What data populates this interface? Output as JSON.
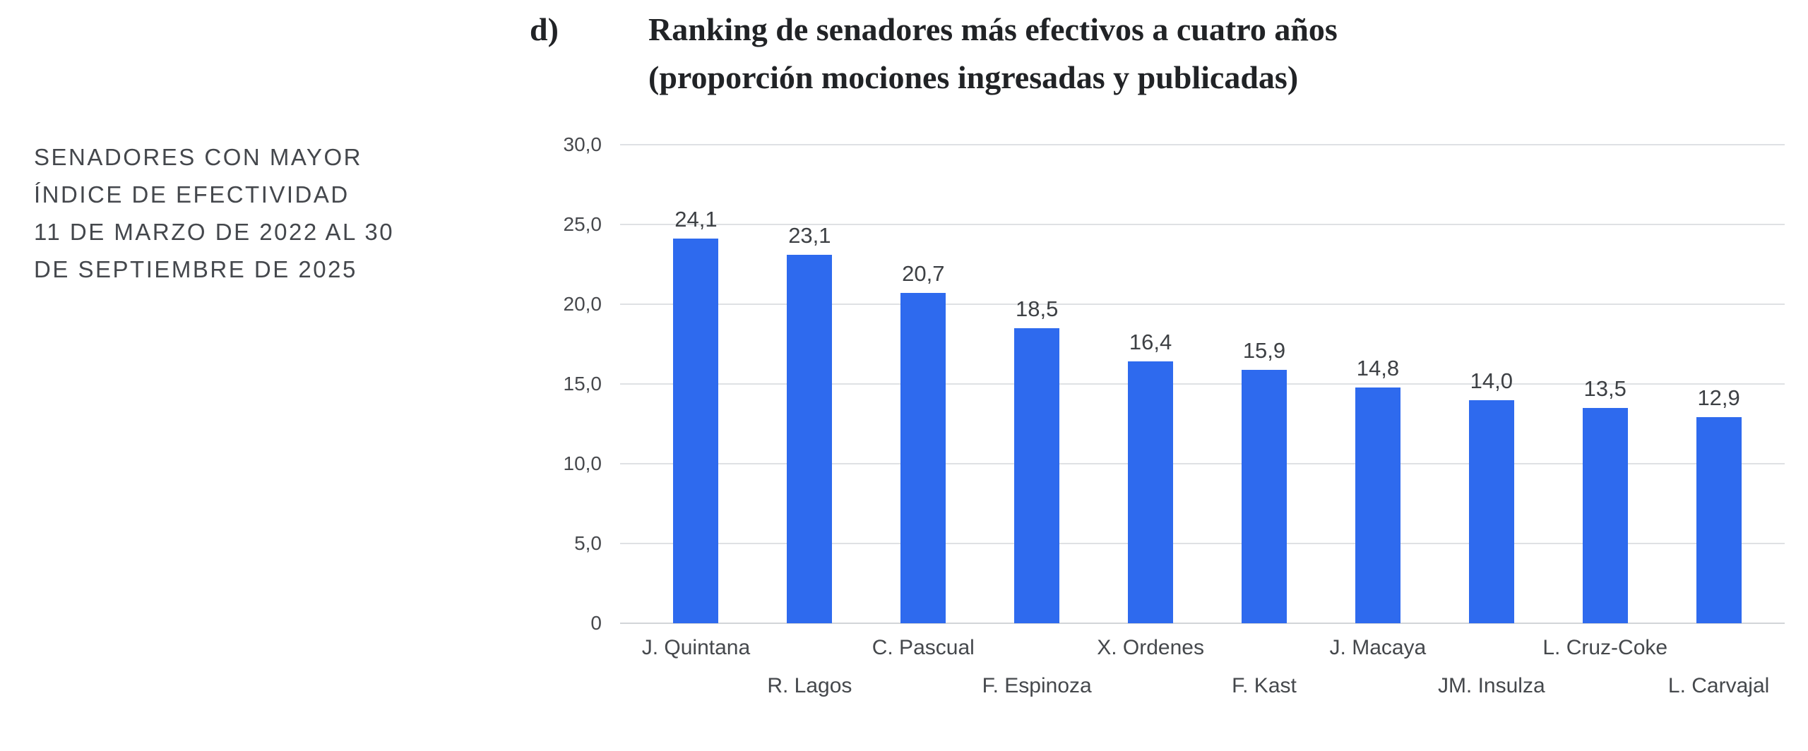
{
  "panel_label": "d)",
  "title": {
    "line1": "Ranking de senadores más efectivos a cuatro años",
    "line2": "(proporción mociones ingresadas y publicadas)"
  },
  "side_note": {
    "lines": [
      "SENADORES CON MAYOR",
      "ÍNDICE DE EFECTIVIDAD",
      "11 DE MARZO DE 2022 AL 30",
      "DE SEPTIEMBRE DE 2025"
    ]
  },
  "chart_data": {
    "type": "bar",
    "title": "Ranking de senadores más efectivos a cuatro años (proporción mociones ingresadas y publicadas)",
    "categories": [
      "J. Quintana",
      "R. Lagos",
      "C. Pascual",
      "F. Espinoza",
      "X. Ordenes",
      "F. Kast",
      "J. Macaya",
      "JM. Insulza",
      "L. Cruz-Coke",
      "L. Carvajal"
    ],
    "values": [
      24.1,
      23.1,
      20.7,
      18.5,
      16.4,
      15.9,
      14.8,
      14.0,
      13.5,
      12.9
    ],
    "value_labels": [
      "24,1",
      "23,1",
      "20,7",
      "18,5",
      "16,4",
      "15,9",
      "14,8",
      "14,0",
      "13,5",
      "12,9"
    ],
    "xlabel": "",
    "ylabel": "",
    "ylim": [
      0,
      30
    ],
    "y_tick_step": 5,
    "y_tick_labels_top_to_bottom": [
      "30,0",
      "25,0",
      "20,0",
      "15,0",
      "10,0",
      "5,0",
      "0"
    ],
    "grid": true,
    "legend": false,
    "bar_color": "#2e6aee",
    "gridline_color": "#dfe1e4",
    "baseline_color": "#d2d5d8",
    "decimal_separator": ","
  }
}
